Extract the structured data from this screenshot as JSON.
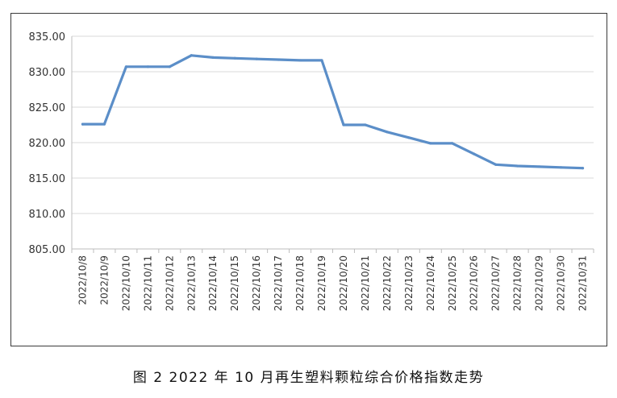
{
  "caption": "图 2  2022 年 10 月再生塑料颗粒综合价格指数走势",
  "chart_data": {
    "type": "line",
    "title": "",
    "xlabel": "",
    "ylabel": "",
    "ylim": [
      805,
      835
    ],
    "yticks": [
      "805.00",
      "810.00",
      "815.00",
      "820.00",
      "825.00",
      "830.00",
      "835.00"
    ],
    "grid": "horizontal",
    "legend": "none",
    "line_color": "#5b8ec8",
    "categories": [
      "2022/10/8",
      "2022/10/9",
      "2022/10/10",
      "2022/10/11",
      "2022/10/12",
      "2022/10/13",
      "2022/10/14",
      "2022/10/15",
      "2022/10/16",
      "2022/10/17",
      "2022/10/18",
      "2022/10/19",
      "2022/10/20",
      "2022/10/21",
      "2022/10/22",
      "2022/10/23",
      "2022/10/24",
      "2022/10/25",
      "2022/10/26",
      "2022/10/27",
      "2022/10/28",
      "2022/10/29",
      "2022/10/30",
      "2022/10/31"
    ],
    "values": [
      822.6,
      822.6,
      830.7,
      830.7,
      830.7,
      832.3,
      832.0,
      831.9,
      831.8,
      831.7,
      831.6,
      831.6,
      822.5,
      822.5,
      821.5,
      820.7,
      819.9,
      819.9,
      818.4,
      816.9,
      816.7,
      816.6,
      816.5,
      816.4
    ]
  }
}
